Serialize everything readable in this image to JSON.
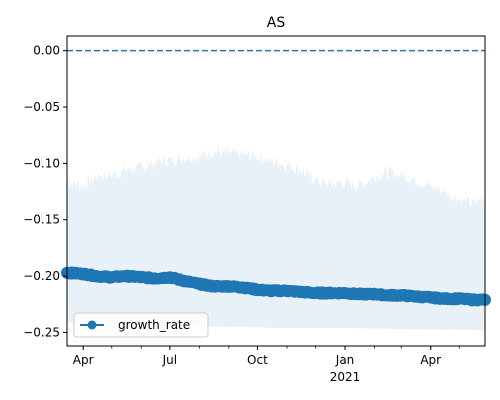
{
  "chart_data": {
    "type": "line",
    "title": "AS",
    "xlabel": "",
    "ylabel": "",
    "x_start": "2020-03-15",
    "x_end": "2021-05-28",
    "ylim": [
      -0.262,
      0.013
    ],
    "grid": false,
    "legend_position": "lower-left",
    "x_ticks": [
      {
        "date": "2020-04-01",
        "label": "Apr"
      },
      {
        "date": "2020-07-01",
        "label": "Jul"
      },
      {
        "date": "2020-10-01",
        "label": "Oct"
      },
      {
        "date": "2021-01-01",
        "label": "Jan"
      },
      {
        "date": "2021-04-01",
        "label": "Apr"
      }
    ],
    "x_year_label": {
      "date": "2021-01-01",
      "label": "2021"
    },
    "y_ticks": [
      0.0,
      -0.05,
      -0.1,
      -0.15,
      -0.2,
      -0.25
    ],
    "y_tick_labels": [
      "0.00",
      "−0.05",
      "−0.10",
      "−0.15",
      "−0.20",
      "−0.25"
    ],
    "reference_line": {
      "y": 0.0,
      "style": "dashed",
      "color": "#1f77b4"
    },
    "series": [
      {
        "name": "growth_rate",
        "color": "#1f77b4",
        "marker": "circle",
        "points": [
          [
            "2020-03-15",
            -0.197
          ],
          [
            "2020-04-01",
            -0.198
          ],
          [
            "2020-04-15",
            -0.2
          ],
          [
            "2020-05-01",
            -0.201
          ],
          [
            "2020-05-15",
            -0.2
          ],
          [
            "2020-06-01",
            -0.201
          ],
          [
            "2020-06-15",
            -0.202
          ],
          [
            "2020-07-01",
            -0.201
          ],
          [
            "2020-07-15",
            -0.204
          ],
          [
            "2020-08-01",
            -0.207
          ],
          [
            "2020-08-15",
            -0.209
          ],
          [
            "2020-09-01",
            -0.209
          ],
          [
            "2020-09-15",
            -0.21
          ],
          [
            "2020-10-01",
            -0.212
          ],
          [
            "2020-10-15",
            -0.213
          ],
          [
            "2020-11-01",
            -0.213
          ],
          [
            "2020-11-15",
            -0.214
          ],
          [
            "2020-12-01",
            -0.215
          ],
          [
            "2020-12-15",
            -0.215
          ],
          [
            "2021-01-01",
            -0.215
          ],
          [
            "2021-01-15",
            -0.216
          ],
          [
            "2021-02-01",
            -0.216
          ],
          [
            "2021-02-15",
            -0.217
          ],
          [
            "2021-03-01",
            -0.217
          ],
          [
            "2021-03-15",
            -0.218
          ],
          [
            "2021-04-01",
            -0.219
          ],
          [
            "2021-04-15",
            -0.22
          ],
          [
            "2021-05-01",
            -0.22
          ],
          [
            "2021-05-15",
            -0.221
          ],
          [
            "2021-05-28",
            -0.221
          ]
        ]
      }
    ],
    "band": {
      "color": "#e8f0f8",
      "upper": [
        [
          "2020-03-15",
          -0.116
        ],
        [
          "2020-04-01",
          -0.12
        ],
        [
          "2020-04-15",
          -0.112
        ],
        [
          "2020-05-01",
          -0.11
        ],
        [
          "2020-05-15",
          -0.106
        ],
        [
          "2020-06-01",
          -0.104
        ],
        [
          "2020-06-15",
          -0.1
        ],
        [
          "2020-07-01",
          -0.097
        ],
        [
          "2020-07-15",
          -0.095
        ],
        [
          "2020-08-01",
          -0.094
        ],
        [
          "2020-08-15",
          -0.09
        ],
        [
          "2020-09-01",
          -0.092
        ],
        [
          "2020-09-15",
          -0.092
        ],
        [
          "2020-10-01",
          -0.094
        ],
        [
          "2020-10-15",
          -0.098
        ],
        [
          "2020-11-01",
          -0.101
        ],
        [
          "2020-11-15",
          -0.106
        ],
        [
          "2020-12-01",
          -0.115
        ],
        [
          "2020-12-15",
          -0.119
        ],
        [
          "2021-01-01",
          -0.117
        ],
        [
          "2021-01-15",
          -0.12
        ],
        [
          "2021-02-01",
          -0.112
        ],
        [
          "2021-02-15",
          -0.108
        ],
        [
          "2021-03-01",
          -0.11
        ],
        [
          "2021-03-15",
          -0.115
        ],
        [
          "2021-04-01",
          -0.12
        ],
        [
          "2021-04-15",
          -0.125
        ],
        [
          "2021-05-01",
          -0.132
        ],
        [
          "2021-05-15",
          -0.136
        ],
        [
          "2021-05-28",
          -0.13
        ]
      ],
      "lower": [
        [
          "2020-03-15",
          -0.241
        ],
        [
          "2020-05-01",
          -0.243
        ],
        [
          "2020-07-01",
          -0.244
        ],
        [
          "2020-09-01",
          -0.245
        ],
        [
          "2020-11-01",
          -0.246
        ],
        [
          "2021-01-01",
          -0.246
        ],
        [
          "2021-03-01",
          -0.247
        ],
        [
          "2021-05-28",
          -0.248
        ]
      ]
    }
  }
}
